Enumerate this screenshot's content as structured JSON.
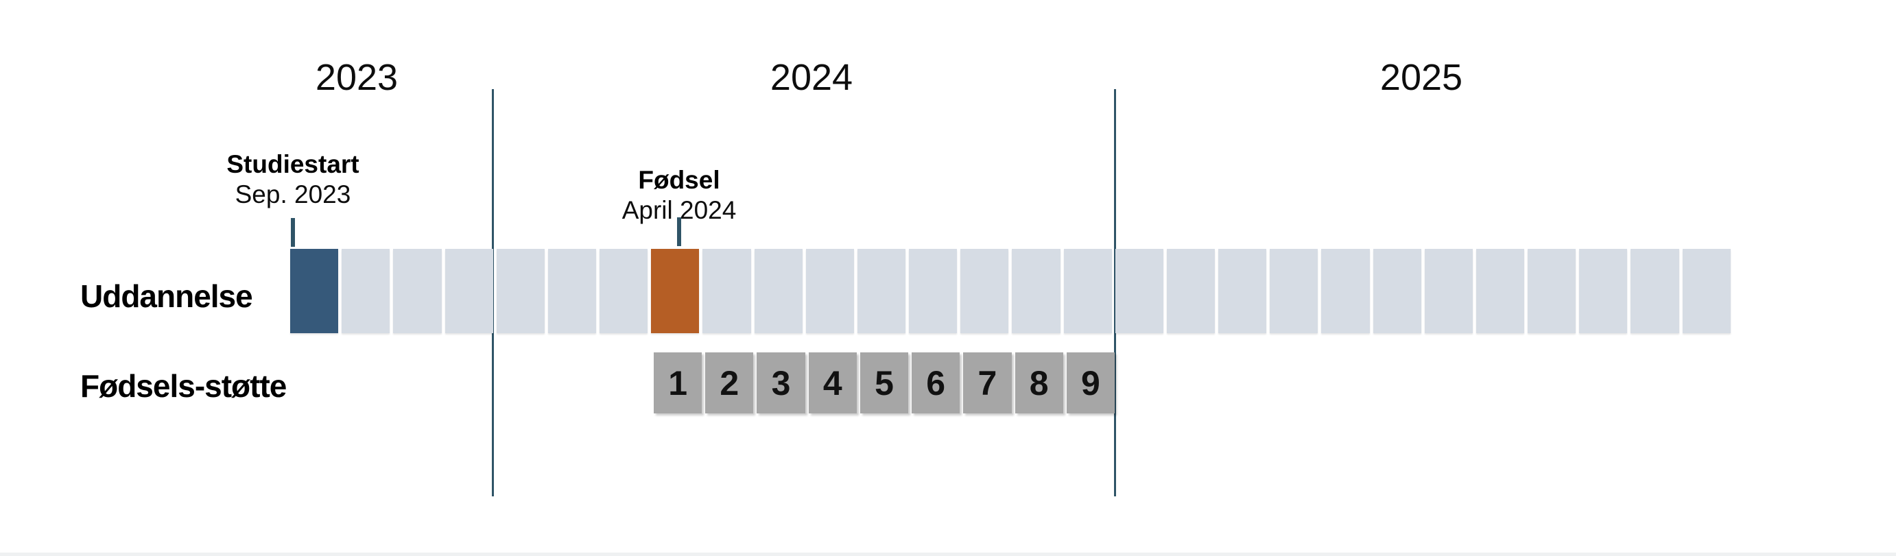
{
  "diagram": {
    "years": [
      "2023",
      "2024",
      "2025"
    ],
    "annotations": [
      {
        "id": "studiestart",
        "title": "Studiestart",
        "subtitle": "Sep. 2023"
      },
      {
        "id": "foedsel",
        "title": "Fødsel",
        "subtitle": "April 2024"
      }
    ],
    "rows": [
      {
        "id": "uddannelse",
        "label": "Uddannelse",
        "cell_count": 28,
        "highlight_start_index": 0,
        "highlight_birth_index": 7
      },
      {
        "id": "foedsels_stoette",
        "label": "Fødsels-støtte",
        "cells": [
          "1",
          "2",
          "3",
          "4",
          "5",
          "6",
          "7",
          "8",
          "9"
        ]
      }
    ],
    "colors": {
      "study_start": "#36597A",
      "birth": "#B55E25",
      "month_default": "#D6DCE4",
      "support_cell": "#A6A6A6",
      "divider_line": "#2F5467",
      "text": "#0D0D0D"
    }
  }
}
